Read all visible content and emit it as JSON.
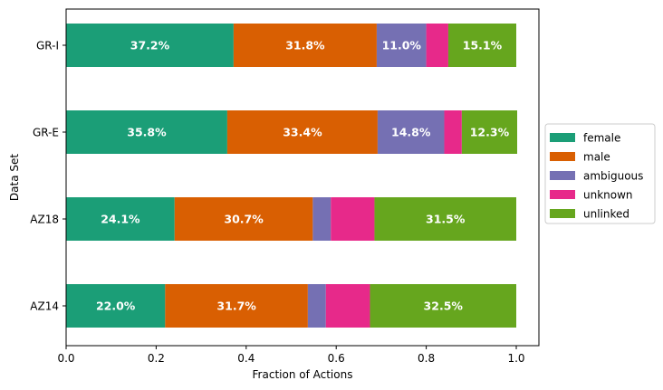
{
  "chart_data": {
    "type": "bar",
    "orientation": "horizontal",
    "stacked": true,
    "xlabel": "Fraction of Actions",
    "ylabel": "Data Set",
    "xlim": [
      0.0,
      1.05
    ],
    "x_ticks": [
      "0.0",
      "0.2",
      "0.4",
      "0.6",
      "0.8",
      "1.0"
    ],
    "categories": [
      "GR-I",
      "GR-E",
      "AZ18",
      "AZ14"
    ],
    "legend_position": "center-right",
    "grid": false,
    "series": [
      {
        "name": "female",
        "color": "#1b9e77",
        "values": [
          0.372,
          0.358,
          0.241,
          0.22
        ],
        "labels": [
          "37.2%",
          "35.8%",
          "24.1%",
          "22.0%"
        ]
      },
      {
        "name": "male",
        "color": "#d95f02",
        "values": [
          0.318,
          0.334,
          0.307,
          0.317
        ],
        "labels": [
          "31.8%",
          "33.4%",
          "30.7%",
          "31.7%"
        ]
      },
      {
        "name": "ambiguous",
        "color": "#7570b3",
        "values": [
          0.11,
          0.148,
          0.04,
          0.04
        ],
        "labels": [
          "11.0%",
          "14.8%",
          "",
          ""
        ]
      },
      {
        "name": "unknown",
        "color": "#e7298a",
        "values": [
          0.049,
          0.039,
          0.097,
          0.098
        ],
        "labels": [
          "",
          "",
          "",
          ""
        ]
      },
      {
        "name": "unlinked",
        "color": "#66a61e",
        "values": [
          0.151,
          0.123,
          0.315,
          0.325
        ],
        "labels": [
          "15.1%",
          "12.3%",
          "31.5%",
          "32.5%"
        ]
      }
    ]
  }
}
